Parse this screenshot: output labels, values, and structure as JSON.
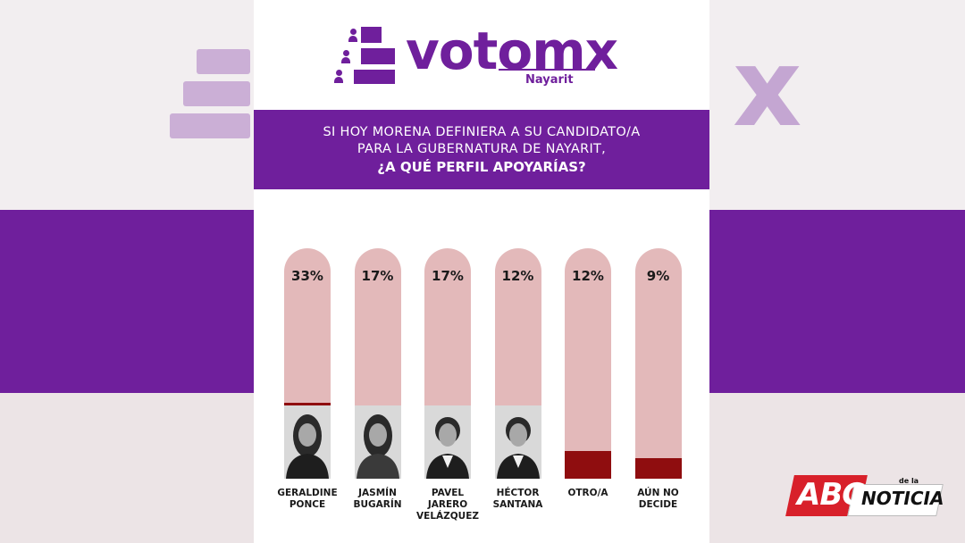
{
  "brand": {
    "name": "votomx",
    "region": "Nayarit",
    "purple": "#6f1f9c",
    "icon": "people-on-steps-icon"
  },
  "question": {
    "line1": "SI HOY MORENA DEFINIERA A SU CANDIDATO/A",
    "line2": "PARA LA GUBERNATURA DE NAYARIT,",
    "line3": "¿A QUÉ PERFIL APOYARÍAS?"
  },
  "chart_data": {
    "type": "bar",
    "orientation": "vertical",
    "categories": [
      "GERALDINE\nPONCE",
      "JASMÍN\nBUGARÍN",
      "PAVEL\nJARERO\nVELÁZQUEZ",
      "HÉCTOR\nSANTANA",
      "OTRO/A",
      "AÚN NO\nDECIDE"
    ],
    "values": [
      33,
      17,
      17,
      12,
      12,
      9
    ],
    "value_labels": [
      "33%",
      "17%",
      "17%",
      "12%",
      "12%",
      "9%"
    ],
    "ylim": [
      0,
      100
    ],
    "fill_color": "#8f0d0f",
    "track_color": "#e3b9ba",
    "has_photo": [
      true,
      true,
      true,
      true,
      false,
      false
    ],
    "grid": false
  },
  "watermark": {
    "abc": "ABC",
    "de_la": "de la",
    "noticia": "NOTICIA",
    "red": "#d8202a"
  }
}
